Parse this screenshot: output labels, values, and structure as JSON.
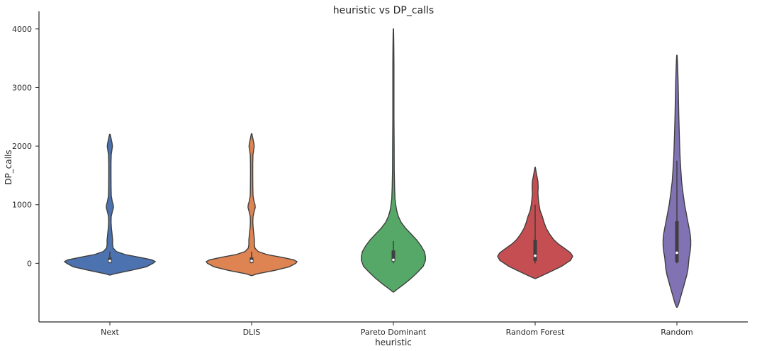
{
  "chart_data": {
    "type": "violin",
    "title": "heuristic vs DP_calls",
    "xlabel": "heuristic",
    "ylabel": "DP_calls",
    "categories": [
      "Next",
      "DLIS",
      "Pareto Dominant",
      "Random Forest",
      "Random"
    ],
    "colors": [
      "#4c72b0",
      "#dd8452",
      "#55a868",
      "#c44e52",
      "#8172b3"
    ],
    "ylim": [
      -1000,
      4300
    ],
    "yticks": [
      0,
      1000,
      2000,
      3000,
      4000
    ],
    "grid": false,
    "series": [
      {
        "category": "Next",
        "density": [
          [
            -200,
            0.005
          ],
          [
            -180,
            0.08
          ],
          [
            -120,
            0.38
          ],
          [
            -60,
            0.66
          ],
          [
            0,
            0.78
          ],
          [
            30,
            0.82
          ],
          [
            60,
            0.76
          ],
          [
            100,
            0.55
          ],
          [
            150,
            0.28
          ],
          [
            200,
            0.12
          ],
          [
            260,
            0.06
          ],
          [
            320,
            0.05
          ],
          [
            400,
            0.05
          ],
          [
            500,
            0.04
          ],
          [
            600,
            0.028
          ],
          [
            700,
            0.022
          ],
          [
            800,
            0.024
          ],
          [
            900,
            0.05
          ],
          [
            950,
            0.065
          ],
          [
            1000,
            0.062
          ],
          [
            1050,
            0.045
          ],
          [
            1150,
            0.026
          ],
          [
            1300,
            0.022
          ],
          [
            1500,
            0.02
          ],
          [
            1700,
            0.02
          ],
          [
            1850,
            0.024
          ],
          [
            1950,
            0.04
          ],
          [
            2000,
            0.048
          ],
          [
            2050,
            0.04
          ],
          [
            2150,
            0.018
          ],
          [
            2200,
            0.005
          ]
        ],
        "box": {
          "q1": 5,
          "median": 40,
          "q3": 100,
          "whisker_low": 0,
          "whisker_high": 200
        }
      },
      {
        "category": "DLIS",
        "density": [
          [
            -210,
            0.005
          ],
          [
            -180,
            0.1
          ],
          [
            -120,
            0.42
          ],
          [
            -60,
            0.68
          ],
          [
            0,
            0.8
          ],
          [
            30,
            0.82
          ],
          [
            60,
            0.76
          ],
          [
            100,
            0.56
          ],
          [
            150,
            0.28
          ],
          [
            200,
            0.12
          ],
          [
            260,
            0.06
          ],
          [
            320,
            0.05
          ],
          [
            400,
            0.05
          ],
          [
            500,
            0.04
          ],
          [
            600,
            0.028
          ],
          [
            700,
            0.022
          ],
          [
            800,
            0.026
          ],
          [
            900,
            0.05
          ],
          [
            950,
            0.065
          ],
          [
            1000,
            0.062
          ],
          [
            1050,
            0.045
          ],
          [
            1150,
            0.026
          ],
          [
            1300,
            0.022
          ],
          [
            1500,
            0.02
          ],
          [
            1700,
            0.02
          ],
          [
            1850,
            0.024
          ],
          [
            1950,
            0.04
          ],
          [
            2000,
            0.048
          ],
          [
            2050,
            0.04
          ],
          [
            2150,
            0.018
          ],
          [
            2210,
            0.005
          ]
        ],
        "box": {
          "q1": 5,
          "median": 40,
          "q3": 100,
          "whisker_low": 0,
          "whisker_high": 200
        }
      },
      {
        "category": "Pareto Dominant",
        "density": [
          [
            -490,
            0.005
          ],
          [
            -450,
            0.06
          ],
          [
            -350,
            0.2
          ],
          [
            -250,
            0.33
          ],
          [
            -150,
            0.44
          ],
          [
            -50,
            0.54
          ],
          [
            50,
            0.58
          ],
          [
            120,
            0.58
          ],
          [
            200,
            0.56
          ],
          [
            300,
            0.5
          ],
          [
            400,
            0.42
          ],
          [
            500,
            0.32
          ],
          [
            600,
            0.22
          ],
          [
            700,
            0.14
          ],
          [
            800,
            0.09
          ],
          [
            900,
            0.06
          ],
          [
            1000,
            0.042
          ],
          [
            1100,
            0.03
          ],
          [
            1300,
            0.022
          ],
          [
            1600,
            0.016
          ],
          [
            2000,
            0.014
          ],
          [
            2500,
            0.01
          ],
          [
            3000,
            0.01
          ],
          [
            3400,
            0.01
          ],
          [
            3700,
            0.008
          ],
          [
            3900,
            0.005
          ],
          [
            4000,
            0.002
          ]
        ],
        "box": {
          "q1": 30,
          "median": 60,
          "q3": 220,
          "whisker_low": 0,
          "whisker_high": 380
        }
      },
      {
        "category": "Random Forest",
        "density": [
          [
            -260,
            0.005
          ],
          [
            -230,
            0.08
          ],
          [
            -150,
            0.26
          ],
          [
            -50,
            0.48
          ],
          [
            50,
            0.64
          ],
          [
            120,
            0.68
          ],
          [
            180,
            0.64
          ],
          [
            250,
            0.54
          ],
          [
            330,
            0.42
          ],
          [
            400,
            0.34
          ],
          [
            500,
            0.26
          ],
          [
            600,
            0.2
          ],
          [
            700,
            0.16
          ],
          [
            800,
            0.13
          ],
          [
            900,
            0.09
          ],
          [
            1000,
            0.07
          ],
          [
            1100,
            0.058
          ],
          [
            1200,
            0.05
          ],
          [
            1300,
            0.055
          ],
          [
            1400,
            0.05
          ],
          [
            1500,
            0.03
          ],
          [
            1600,
            0.01
          ],
          [
            1640,
            0.002
          ]
        ],
        "box": {
          "q1": 40,
          "median": 130,
          "q3": 400,
          "whisker_low": 0,
          "whisker_high": 1000
        }
      },
      {
        "category": "Random",
        "density": [
          [
            -750,
            0.005
          ],
          [
            -700,
            0.03
          ],
          [
            -600,
            0.06
          ],
          [
            -500,
            0.09
          ],
          [
            -400,
            0.12
          ],
          [
            -300,
            0.15
          ],
          [
            -200,
            0.18
          ],
          [
            -100,
            0.2
          ],
          [
            0,
            0.21
          ],
          [
            100,
            0.22
          ],
          [
            200,
            0.24
          ],
          [
            300,
            0.25
          ],
          [
            400,
            0.25
          ],
          [
            500,
            0.24
          ],
          [
            600,
            0.22
          ],
          [
            700,
            0.2
          ],
          [
            800,
            0.18
          ],
          [
            900,
            0.16
          ],
          [
            1000,
            0.14
          ],
          [
            1200,
            0.11
          ],
          [
            1400,
            0.085
          ],
          [
            1600,
            0.07
          ],
          [
            1800,
            0.058
          ],
          [
            2000,
            0.05
          ],
          [
            2200,
            0.044
          ],
          [
            2500,
            0.035
          ],
          [
            2800,
            0.028
          ],
          [
            3100,
            0.022
          ],
          [
            3400,
            0.012
          ],
          [
            3550,
            0.004
          ]
        ],
        "box": {
          "q1": 20,
          "median": 180,
          "q3": 720,
          "whisker_low": 0,
          "whisker_high": 1750
        }
      }
    ]
  }
}
